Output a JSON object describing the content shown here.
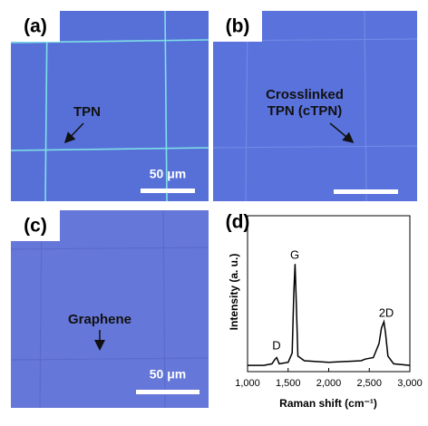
{
  "panels": [
    {
      "label": "(a)",
      "annotation": [
        "TPN"
      ],
      "scale_bar": "50 μm"
    },
    {
      "label": "(b)",
      "annotation": [
        "Crosslinked",
        "TPN (cTPN)"
      ]
    },
    {
      "label": "(c)",
      "annotation": [
        "Graphene"
      ],
      "scale_bar": "50 μm"
    },
    {
      "label": "(d)"
    }
  ],
  "chart_data": {
    "type": "line",
    "xlabel": "Raman shift (cm⁻¹)",
    "ylabel": "Intensity (a. u.)",
    "peak_labels": [
      "D",
      "G",
      "2D"
    ],
    "x": [
      1000,
      1200,
      1300,
      1340,
      1360,
      1390,
      1500,
      1550,
      1570,
      1585,
      1600,
      1620,
      1700,
      2000,
      2400,
      2450,
      2550,
      2620,
      2650,
      2680,
      2700,
      2730,
      2800,
      3000
    ],
    "values": [
      4,
      4,
      5,
      8,
      9,
      5,
      6,
      12,
      50,
      69,
      45,
      10,
      7,
      6,
      7,
      8,
      9,
      18,
      28,
      32,
      25,
      10,
      5,
      4
    ],
    "color": "#000000",
    "xlim": [
      1000,
      3000
    ],
    "ylim": [
      0,
      100
    ],
    "xticks": [
      {
        "value": 1000,
        "label": "1,000"
      },
      {
        "value": 1500,
        "label": "1,500"
      },
      {
        "value": 2000,
        "label": "2,000"
      },
      {
        "value": 2500,
        "label": "2,500"
      },
      {
        "value": 3000,
        "label": "3,000"
      }
    ]
  }
}
